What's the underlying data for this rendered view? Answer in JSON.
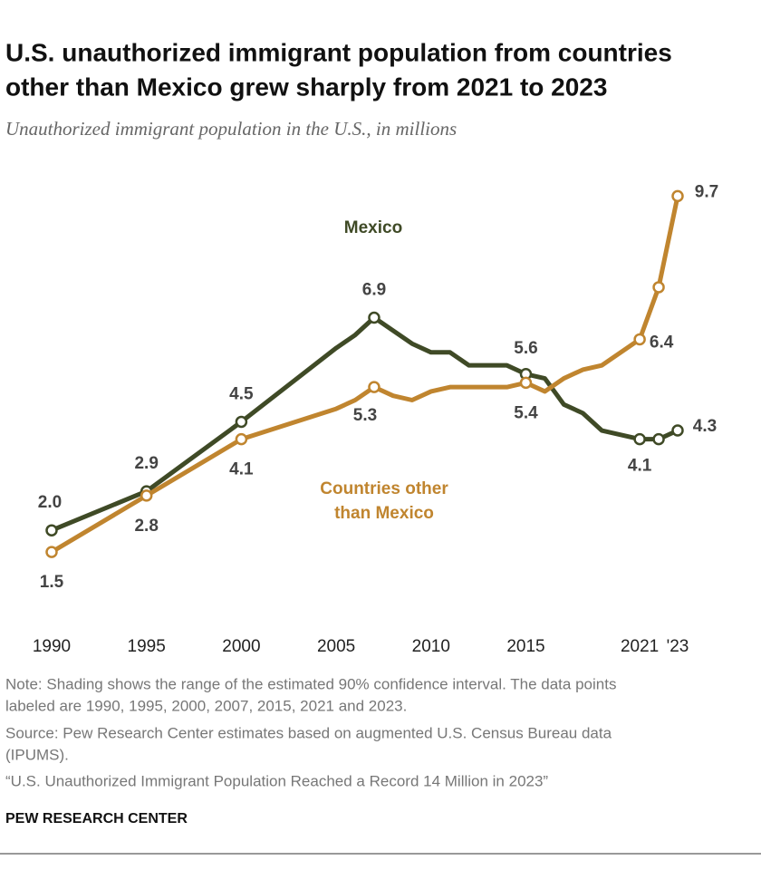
{
  "chart_data": {
    "type": "line",
    "title": [
      "U.S. unauthorized immigrant population from countries",
      "other than Mexico grew sharply from 2021 to 2023"
    ],
    "subtitle": "Unauthorized immigrant population in the U.S., in millions",
    "x": [
      1990,
      1995,
      2000,
      2005,
      2006,
      2007,
      2008,
      2009,
      2010,
      2011,
      2012,
      2013,
      2014,
      2015,
      2016,
      2017,
      2018,
      2019,
      2020,
      2021,
      2022,
      2023
    ],
    "xlim": [
      1990,
      2023
    ],
    "xticks": [
      1990,
      1995,
      2000,
      2005,
      2010,
      2015,
      2021,
      {
        "value": 2023,
        "label": "'23"
      }
    ],
    "ylim": [
      0,
      10
    ],
    "grid": false,
    "series": [
      {
        "name": "Mexico",
        "color": "#3f4a26",
        "values": [
          2.0,
          2.9,
          4.5,
          6.2,
          6.5,
          6.9,
          6.6,
          6.3,
          6.1,
          6.1,
          5.8,
          5.8,
          5.8,
          5.6,
          5.5,
          4.9,
          4.7,
          4.3,
          4.2,
          4.1,
          4.1,
          4.3
        ],
        "value_labels": [
          "2.0",
          "2.9",
          "4.5",
          null,
          null,
          "6.9",
          null,
          null,
          null,
          null,
          null,
          null,
          null,
          "5.6",
          null,
          null,
          null,
          null,
          null,
          "4.1",
          null,
          "4.3"
        ]
      },
      {
        "name": [
          "Countries other",
          "than Mexico"
        ],
        "color": "#c0852f",
        "values": [
          1.5,
          2.8,
          4.1,
          4.8,
          5.0,
          5.3,
          5.1,
          5.0,
          5.2,
          5.3,
          5.3,
          5.3,
          5.3,
          5.4,
          5.2,
          5.5,
          5.7,
          5.8,
          6.1,
          6.4,
          7.6,
          9.7
        ],
        "value_labels": [
          "1.5",
          "2.8",
          "4.1",
          null,
          null,
          "5.3",
          null,
          null,
          null,
          null,
          null,
          null,
          null,
          "5.4",
          null,
          null,
          null,
          null,
          null,
          "6.4",
          null,
          "9.7"
        ]
      }
    ],
    "note": [
      "Note: Shading shows the range of the estimated 90% confidence interval. The data points",
      "labeled are 1990, 1995, 2000, 2007, 2015, 2021 and 2023."
    ],
    "source": [
      "Source: Pew Research Center estimates based on augmented U.S. Census Bureau data",
      "(IPUMS)."
    ],
    "report": "“U.S. Unauthorized Immigrant Population Reached a Record 14 Million in 2023”",
    "credit": "PEW RESEARCH CENTER"
  }
}
